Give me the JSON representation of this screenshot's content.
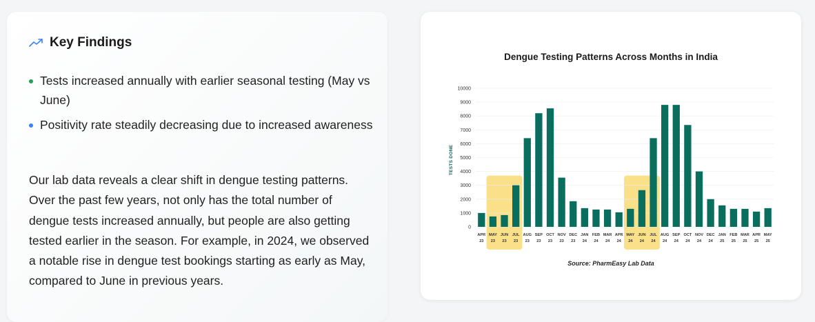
{
  "key_findings": {
    "title": "Key Findings",
    "icon": "trending-up-icon",
    "accent_color": "#3b82f6",
    "items": [
      {
        "text": "Tests increased annually with earlier seasonal testing (May vs June)",
        "bullet_color": "#22a05a"
      },
      {
        "text": "Positivity rate steadily decreasing due to increased awareness",
        "bullet_color": "#3b82f6"
      }
    ],
    "paragraph": "Our lab data reveals a clear shift in dengue testing patterns. Over the past few years, not only has the total number of dengue tests increased annually, but people are also getting tested earlier in the season. For example, in 2024, we observed a notable rise in dengue test bookings starting as early as May, compared to June in previous years."
  },
  "chart_data": {
    "type": "bar",
    "title": "Dengue Testing Patterns Across Months in India",
    "ylabel": "TESTS DONE",
    "xlabel": "",
    "source": "Source: PharmEasy Lab Data",
    "ylim": [
      0,
      10000
    ],
    "yticks": [
      0,
      1000,
      2000,
      3000,
      4000,
      5000,
      6000,
      7000,
      8000,
      9000,
      10000
    ],
    "grid": true,
    "bar_color": "#0a6e5f",
    "highlight_color": "#fbe08a",
    "categories": [
      {
        "month": "APR",
        "year": "23"
      },
      {
        "month": "MAY",
        "year": "23"
      },
      {
        "month": "JUN",
        "year": "23"
      },
      {
        "month": "JUL",
        "year": "23"
      },
      {
        "month": "AUG",
        "year": "23"
      },
      {
        "month": "SEP",
        "year": "23"
      },
      {
        "month": "OCT",
        "year": "23"
      },
      {
        "month": "NOV",
        "year": "23"
      },
      {
        "month": "DEC",
        "year": "23"
      },
      {
        "month": "JAN",
        "year": "24"
      },
      {
        "month": "FEB",
        "year": "24"
      },
      {
        "month": "MAR",
        "year": "24"
      },
      {
        "month": "APR",
        "year": "24"
      },
      {
        "month": "MAY",
        "year": "24"
      },
      {
        "month": "JUN",
        "year": "24"
      },
      {
        "month": "JUL",
        "year": "24"
      },
      {
        "month": "AUG",
        "year": "24"
      },
      {
        "month": "SEP",
        "year": "24"
      },
      {
        "month": "OCT",
        "year": "24"
      },
      {
        "month": "NOV",
        "year": "24"
      },
      {
        "month": "DEC",
        "year": "24"
      },
      {
        "month": "JAN",
        "year": "25"
      },
      {
        "month": "FEB",
        "year": "25"
      },
      {
        "month": "MAR",
        "year": "25"
      },
      {
        "month": "APR",
        "year": "25"
      },
      {
        "month": "MAY",
        "year": "25"
      }
    ],
    "values": [
      1000,
      750,
      850,
      3000,
      6400,
      8200,
      8550,
      3550,
      1850,
      1350,
      1250,
      1250,
      1050,
      1300,
      2650,
      6400,
      8800,
      8800,
      7350,
      4000,
      2000,
      1550,
      1300,
      1300,
      1100,
      1350
    ],
    "highlight_ranges": [
      [
        1,
        3
      ],
      [
        13,
        15
      ]
    ]
  }
}
